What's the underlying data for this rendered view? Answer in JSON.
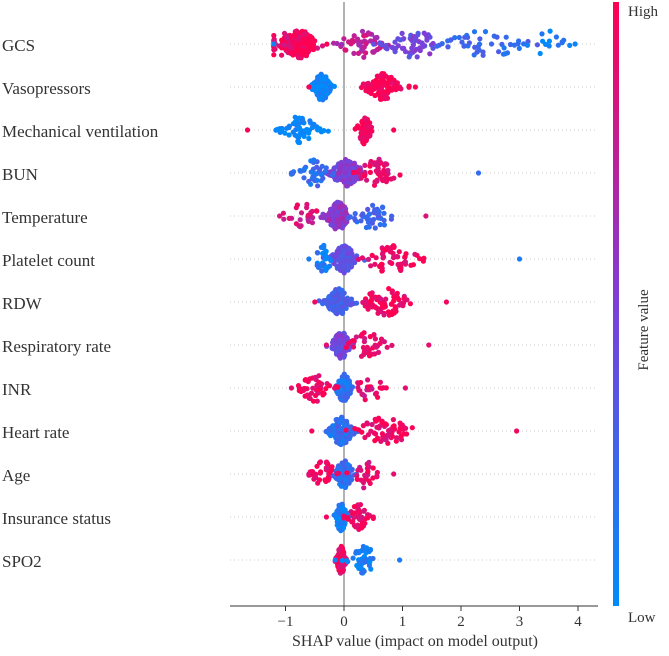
{
  "chart_data": {
    "type": "scatter",
    "subtype": "shap-beeswarm",
    "title": "",
    "xlabel": "SHAP value (impact on model output)",
    "ylabel": "",
    "xlim": [
      -1.95,
      4.15
    ],
    "xticks": [
      -1,
      0,
      1,
      2,
      3,
      4
    ],
    "xtick_labels": [
      "−1",
      "0",
      "1",
      "2",
      "3",
      "4"
    ],
    "colorbar": {
      "label": "Feature value",
      "high": "High",
      "low": "Low",
      "color_low": "#008bfb",
      "color_high": "#ff0052"
    },
    "features": [
      {
        "name": "GCS",
        "clusters": [
          {
            "center": -0.75,
            "spread": 0.3,
            "n": 180,
            "color_value": 0.95
          },
          {
            "center": -1.05,
            "spread": 0.35,
            "n": 30,
            "color_value": 0.9
          },
          {
            "center": 0.3,
            "spread": 0.35,
            "n": 50,
            "color_value": 0.75
          },
          {
            "center": 1.2,
            "spread": 0.5,
            "n": 60,
            "color_value": 0.45
          },
          {
            "center": 2.4,
            "spread": 0.7,
            "n": 45,
            "color_value": 0.2
          },
          {
            "center": 3.5,
            "spread": 0.35,
            "n": 14,
            "color_value": 0.05
          }
        ],
        "max": 3.95,
        "min": -1.2
      },
      {
        "name": "Vasopressors",
        "clusters": [
          {
            "center": -0.38,
            "spread": 0.14,
            "n": 130,
            "color_value": 0.02
          },
          {
            "center": 0.65,
            "spread": 0.28,
            "n": 110,
            "color_value": 0.98
          }
        ],
        "max": 1.22,
        "min": -0.6
      },
      {
        "name": "Mechanical ventilation",
        "clusters": [
          {
            "center": -0.75,
            "spread": 0.3,
            "n": 60,
            "color_value": 0.02
          },
          {
            "center": 0.35,
            "spread": 0.12,
            "n": 80,
            "color_value": 0.98
          }
        ],
        "max": 0.85,
        "min": -1.65
      },
      {
        "name": "BUN",
        "clusters": [
          {
            "center": 0.05,
            "spread": 0.25,
            "n": 140,
            "color_value": 0.5
          },
          {
            "center": 0.6,
            "spread": 0.35,
            "n": 50,
            "color_value": 0.9
          },
          {
            "center": -0.5,
            "spread": 0.25,
            "n": 40,
            "color_value": 0.2
          }
        ],
        "max": 2.3,
        "min": -0.9
      },
      {
        "name": "Temperature",
        "clusters": [
          {
            "center": -0.1,
            "spread": 0.2,
            "n": 140,
            "color_value": 0.55
          },
          {
            "center": 0.5,
            "spread": 0.35,
            "n": 40,
            "color_value": 0.25
          },
          {
            "center": -0.7,
            "spread": 0.3,
            "n": 25,
            "color_value": 0.85
          }
        ],
        "max": 1.4,
        "min": -1.1
      },
      {
        "name": "Platelet count",
        "clusters": [
          {
            "center": 0.0,
            "spread": 0.2,
            "n": 130,
            "color_value": 0.35
          },
          {
            "center": 0.8,
            "spread": 0.45,
            "n": 60,
            "color_value": 0.95
          },
          {
            "center": -0.35,
            "spread": 0.15,
            "n": 30,
            "color_value": 0.1
          }
        ],
        "max": 3.0,
        "min": -0.6
      },
      {
        "name": "RDW",
        "clusters": [
          {
            "center": -0.1,
            "spread": 0.2,
            "n": 120,
            "color_value": 0.3
          },
          {
            "center": 0.7,
            "spread": 0.4,
            "n": 70,
            "color_value": 0.95
          }
        ],
        "max": 1.75,
        "min": -0.5
      },
      {
        "name": "Respiratory rate",
        "clusters": [
          {
            "center": -0.05,
            "spread": 0.15,
            "n": 110,
            "color_value": 0.45
          },
          {
            "center": 0.4,
            "spread": 0.3,
            "n": 40,
            "color_value": 0.9
          }
        ],
        "max": 1.45,
        "min": -0.3
      },
      {
        "name": "INR",
        "clusters": [
          {
            "center": 0.0,
            "spread": 0.12,
            "n": 130,
            "color_value": 0.15
          },
          {
            "center": -0.5,
            "spread": 0.25,
            "n": 50,
            "color_value": 0.95
          },
          {
            "center": 0.45,
            "spread": 0.25,
            "n": 25,
            "color_value": 0.9
          }
        ],
        "max": 1.05,
        "min": -0.9
      },
      {
        "name": "Heart rate",
        "clusters": [
          {
            "center": -0.05,
            "spread": 0.2,
            "n": 130,
            "color_value": 0.2
          },
          {
            "center": 0.7,
            "spread": 0.45,
            "n": 70,
            "color_value": 0.95
          }
        ],
        "max": 2.95,
        "min": -0.55
      },
      {
        "name": "Age",
        "clusters": [
          {
            "center": 0.0,
            "spread": 0.15,
            "n": 120,
            "color_value": 0.2
          },
          {
            "center": -0.35,
            "spread": 0.2,
            "n": 40,
            "color_value": 0.95
          },
          {
            "center": 0.35,
            "spread": 0.2,
            "n": 25,
            "color_value": 0.9
          }
        ],
        "max": 0.85,
        "min": -0.6
      },
      {
        "name": "Insurance status",
        "clusters": [
          {
            "center": -0.05,
            "spread": 0.1,
            "n": 100,
            "color_value": 0.1
          },
          {
            "center": 0.25,
            "spread": 0.15,
            "n": 45,
            "color_value": 0.95
          }
        ],
        "max": 0.5,
        "min": -0.3
      },
      {
        "name": "SPO2",
        "clusters": [
          {
            "center": -0.05,
            "spread": 0.08,
            "n": 110,
            "color_value": 0.95
          },
          {
            "center": 0.35,
            "spread": 0.25,
            "n": 45,
            "color_value": 0.1
          }
        ],
        "max": 0.95,
        "min": -0.15
      }
    ]
  }
}
